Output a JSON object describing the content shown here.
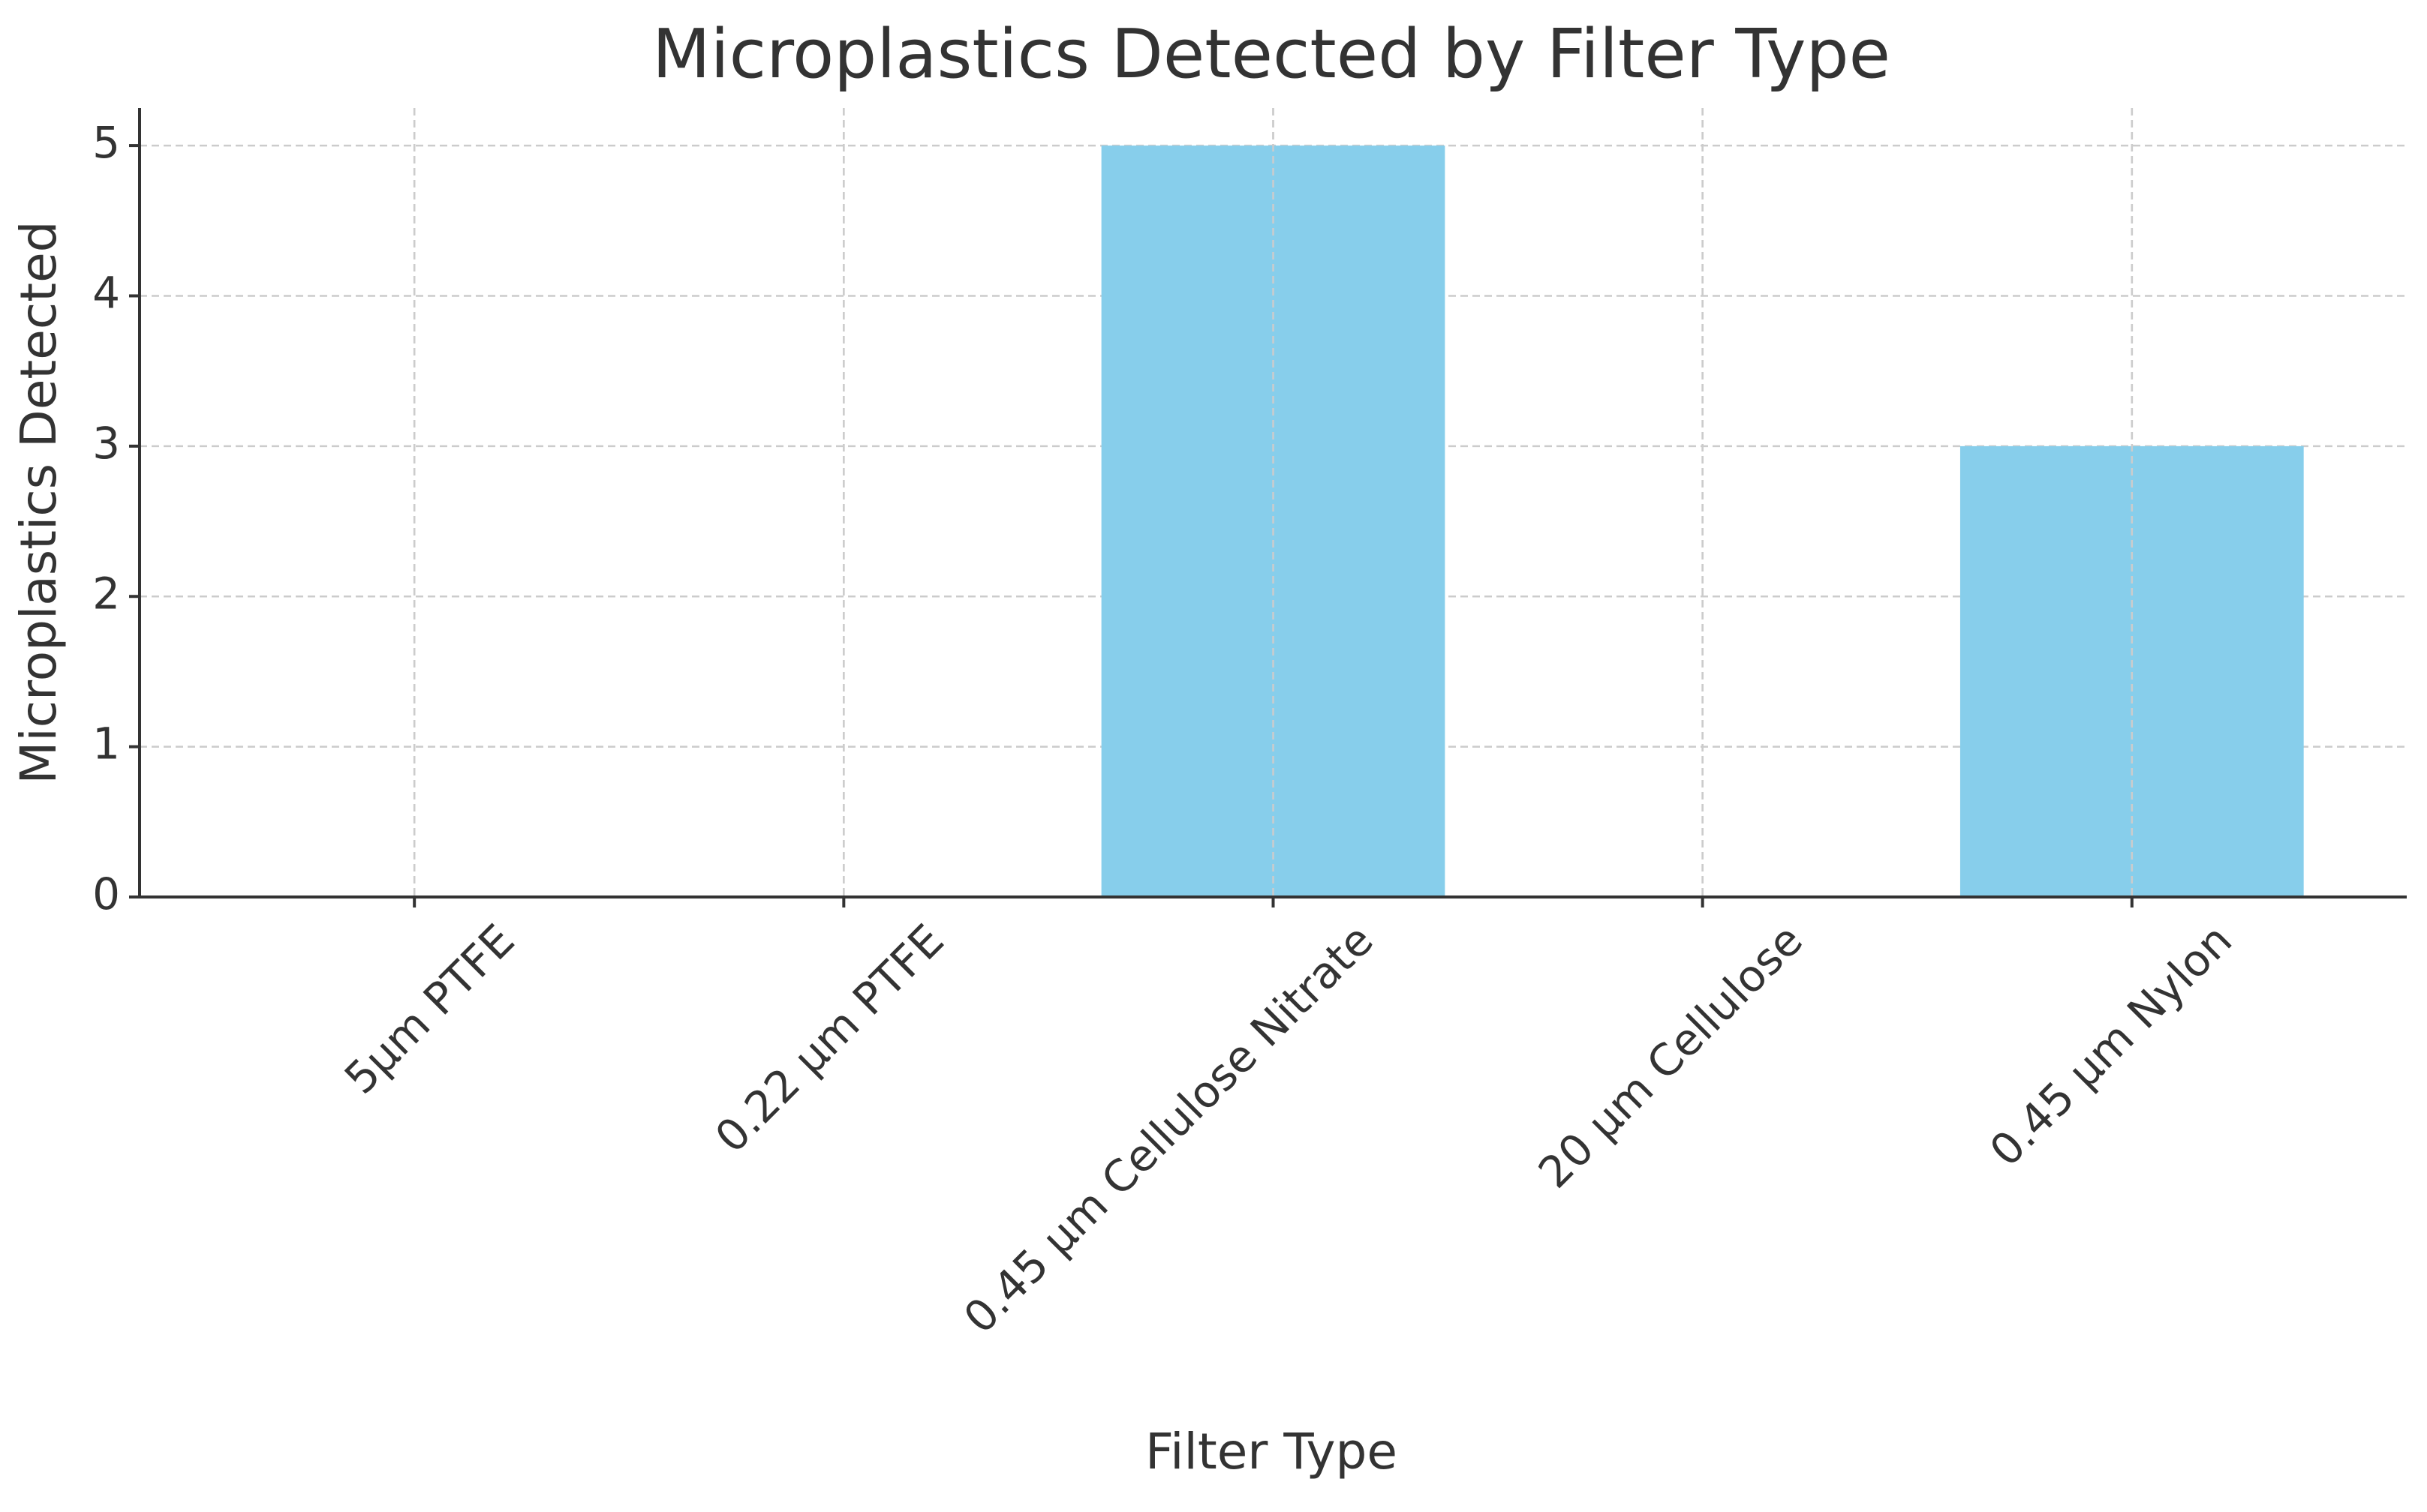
{
  "chart_data": {
    "type": "bar",
    "title": "Microplastics Detected by Filter Type",
    "x_label": "Filter Type",
    "y_label": "Microplastics Detected",
    "categories": [
      "5μm PTFE",
      "0.22 μm PTFE",
      "0.45 μm Cellulose Nitrate",
      "20 μm Cellulose",
      "0.45 μm Nylon"
    ],
    "values": [
      0,
      0,
      5,
      0,
      3
    ],
    "color": "#87ceeb",
    "ylim": [
      0,
      5.25
    ],
    "yticks": [
      0,
      1,
      2,
      3,
      4,
      5
    ],
    "grid": true
  }
}
